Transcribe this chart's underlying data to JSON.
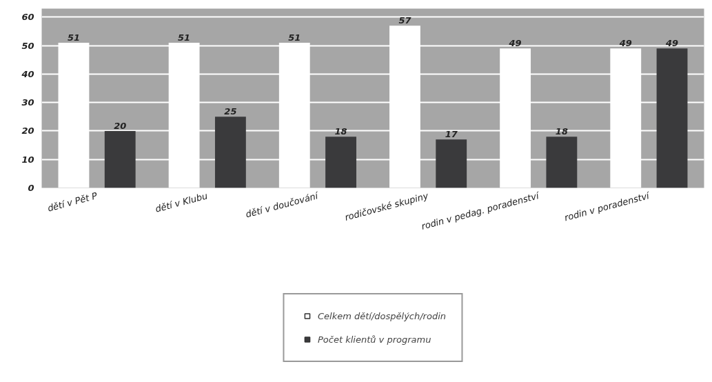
{
  "chart_data": {
    "type": "bar",
    "categories": [
      "dětí v Pět P",
      "dětí v Klubu",
      "dětí v doučování",
      "rodičovské skupiny",
      "rodin v pedag. poradenství",
      "rodin v poradenství"
    ],
    "series": [
      {
        "name": "Celkem dětí/dospělých/rodin",
        "color": "#ffffff",
        "values": [
          51,
          51,
          51,
          57,
          49,
          49
        ]
      },
      {
        "name": "Počet klientů v programu",
        "color": "#3a3a3c",
        "values": [
          20,
          25,
          18,
          17,
          18,
          49
        ]
      }
    ],
    "ylim": [
      0,
      63
    ],
    "yticks": [
      0,
      10,
      20,
      30,
      40,
      50,
      60
    ],
    "grid": "y",
    "legend": "bottom",
    "data_labels": true
  }
}
